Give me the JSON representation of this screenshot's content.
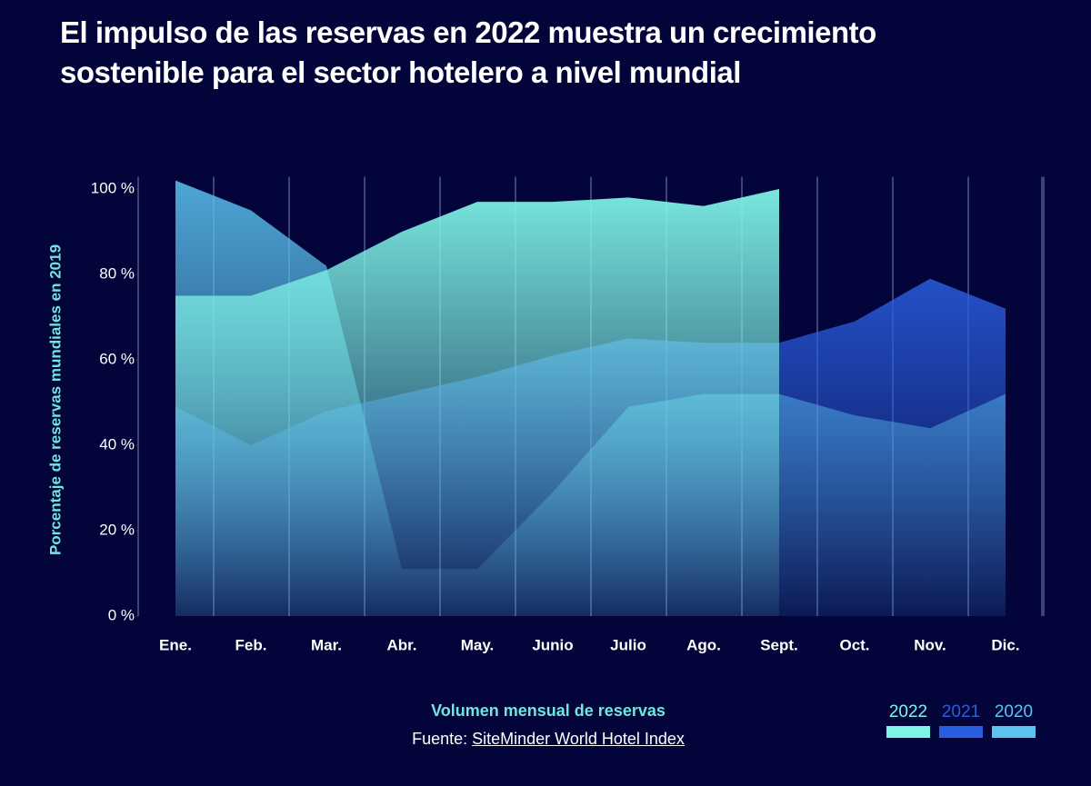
{
  "chart_data": {
    "type": "area",
    "title": "El impulso de las reservas en 2022 muestra un crecimiento sostenible para el sector hotelero a nivel mundial",
    "x_label": "Volumen mensual de reservas",
    "y_label": "Porcentaje de reservas mundiales en 2019",
    "source_prefix": "Fuente:",
    "source_link": "SiteMinder World Hotel Index",
    "categories": [
      "Ene.",
      "Feb.",
      "Mar.",
      "Abr.",
      "May.",
      "Junio",
      "Julio",
      "Ago.",
      "Sept.",
      "Oct.",
      "Nov.",
      "Dic."
    ],
    "ylim": [
      0,
      105
    ],
    "yticks": [
      {
        "value": 0,
        "label": "0 %"
      },
      {
        "value": 20,
        "label": "20 %"
      },
      {
        "value": 40,
        "label": "40 %"
      },
      {
        "value": 60,
        "label": "60 %"
      },
      {
        "value": 80,
        "label": "80 %"
      },
      {
        "value": 100,
        "label": "100 %"
      }
    ],
    "series": [
      {
        "name": "2022",
        "color": "#7ff3e6",
        "values": [
          75,
          75,
          81,
          90,
          97,
          97,
          98,
          96,
          100,
          null,
          null,
          null
        ]
      },
      {
        "name": "2021",
        "color": "#2a5ee0",
        "values": [
          49,
          40,
          48,
          52,
          56,
          61,
          65,
          64,
          64,
          69,
          79,
          72
        ]
      },
      {
        "name": "2020",
        "color": "#5bc3f0",
        "values": [
          102,
          95,
          82,
          11,
          11,
          29,
          49,
          52,
          52,
          47,
          44,
          52
        ]
      }
    ]
  }
}
